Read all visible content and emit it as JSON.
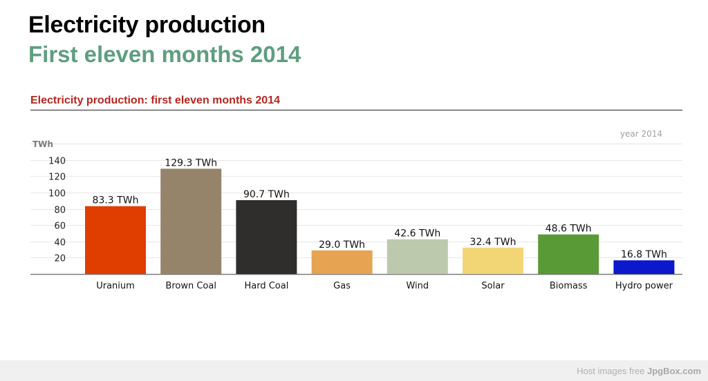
{
  "header": {
    "title": "Electricity production",
    "subtitle": "First eleven months 2014"
  },
  "chart_heading": "Electricity production: first eleven months 2014",
  "footer": {
    "text_prefix": "Host images free ",
    "text_brand": "JpgBox.com"
  },
  "chart_data": {
    "type": "bar",
    "title": "Electricity production: first eleven months 2014",
    "ylabel": "TWh",
    "legend_note": "year 2014",
    "yticks": [
      20,
      40,
      60,
      80,
      100,
      120,
      140
    ],
    "ylim": [
      0,
      160
    ],
    "grid": true,
    "categories": [
      "Uranium",
      "Brown Coal",
      "Hard Coal",
      "Gas",
      "Wind",
      "Solar",
      "Biomass",
      "Hydro power"
    ],
    "values": [
      83.3,
      129.3,
      90.7,
      29.0,
      42.6,
      32.4,
      48.6,
      16.8
    ],
    "value_labels": [
      "83.3 TWh",
      "129.3 TWh",
      "90.7 TWh",
      "29.0 TWh",
      "42.6 TWh",
      "32.4 TWh",
      "48.6 TWh",
      "16.8 TWh"
    ],
    "colors": [
      "#e03d00",
      "#95846a",
      "#2f2e2c",
      "#e6a352",
      "#bcc9ad",
      "#f2d675",
      "#5a9a36",
      "#0c18cc"
    ]
  }
}
